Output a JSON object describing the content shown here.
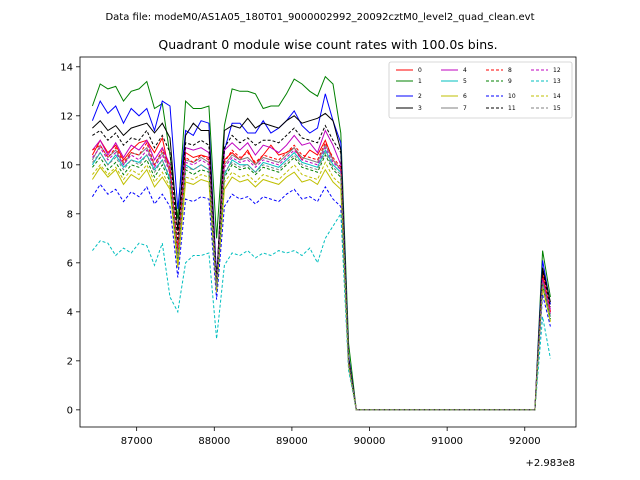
{
  "chart_data": {
    "type": "line",
    "suptitle": "Data file: modeM0/AS1A05_180T01_9000002992_20092cztM0_level2_quad_clean.evt",
    "title": "Quadrant 0 module wise count rates with 100.0s bins.",
    "xlabel": "",
    "ylabel": "",
    "x_offset_label": "+2.983e8",
    "x_offset": 298300000,
    "xlim": [
      86270,
      92660
    ],
    "ylim": [
      -0.7,
      14.4
    ],
    "xticks": [
      87000,
      88000,
      89000,
      90000,
      91000,
      92000
    ],
    "yticks": [
      0,
      2,
      4,
      6,
      8,
      10,
      12,
      14
    ],
    "xtick_labels": [
      "87000",
      "88000",
      "89000",
      "90000",
      "91000",
      "92000"
    ],
    "ytick_labels": [
      "0",
      "2",
      "4",
      "6",
      "8",
      "10",
      "12",
      "14"
    ],
    "legend_position": "upper-right",
    "legend_columns": 4,
    "grid": false,
    "x": [
      86430,
      86530,
      86630,
      86730,
      86830,
      86930,
      87030,
      87130,
      87230,
      87330,
      87430,
      87530,
      87630,
      87730,
      87830,
      87930,
      88030,
      88130,
      88230,
      88330,
      88430,
      88530,
      88630,
      88730,
      88830,
      88930,
      89030,
      89130,
      89230,
      89330,
      89430,
      89530,
      89630,
      89730,
      89830,
      89930,
      90030,
      90130,
      90230,
      90330,
      90430,
      90530,
      90630,
      90730,
      90830,
      90930,
      91030,
      91130,
      91230,
      91330,
      91430,
      91530,
      91630,
      91730,
      91830,
      91930,
      92030,
      92130,
      92230,
      92330
    ],
    "series": [
      {
        "name": "0",
        "color": "#ff0000",
        "dash": "solid",
        "values": [
          10.4,
          11.0,
          10.5,
          10.8,
          10.2,
          10.6,
          10.9,
          11.0,
          10.5,
          11.1,
          9.6,
          6.6,
          10.5,
          10.3,
          10.4,
          10.3,
          5.3,
          10.2,
          10.5,
          10.2,
          10.6,
          10.0,
          10.4,
          10.8,
          10.4,
          10.5,
          10.7,
          10.2,
          10.6,
          10.4,
          11.0,
          10.2,
          9.8,
          2.0,
          0,
          0,
          0,
          0,
          0,
          0,
          0,
          0,
          0,
          0,
          0,
          0,
          0,
          0,
          0,
          0,
          0,
          0,
          0,
          0,
          0,
          0,
          0,
          0,
          5.6,
          4.0
        ]
      },
      {
        "name": "1",
        "color": "#008000",
        "dash": "solid",
        "values": [
          12.4,
          13.3,
          13.1,
          13.2,
          12.6,
          13.0,
          13.1,
          13.4,
          12.3,
          12.5,
          10.4,
          7.8,
          12.6,
          12.3,
          12.3,
          12.4,
          7.0,
          11.6,
          13.1,
          13.0,
          13.0,
          12.9,
          12.3,
          12.4,
          12.4,
          12.9,
          13.5,
          13.3,
          13.0,
          12.8,
          13.6,
          13.3,
          11.3,
          2.7,
          0,
          0,
          0,
          0,
          0,
          0,
          0,
          0,
          0,
          0,
          0,
          0,
          0,
          0,
          0,
          0,
          0,
          0,
          0,
          0,
          0,
          0,
          0,
          0,
          6.5,
          4.6
        ]
      },
      {
        "name": "2",
        "color": "#0000ff",
        "dash": "solid",
        "values": [
          11.8,
          12.6,
          12.1,
          12.4,
          11.7,
          12.3,
          12.0,
          12.3,
          11.4,
          12.6,
          12.4,
          8.2,
          11.4,
          11.2,
          11.8,
          11.7,
          5.4,
          10.6,
          11.7,
          11.7,
          11.3,
          11.3,
          11.8,
          11.3,
          11.5,
          11.8,
          12.2,
          11.6,
          11.3,
          11.5,
          12.9,
          11.8,
          10.9,
          2.2,
          0,
          0,
          0,
          0,
          0,
          0,
          0,
          0,
          0,
          0,
          0,
          0,
          0,
          0,
          0,
          0,
          0,
          0,
          0,
          0,
          0,
          0,
          0,
          0,
          6.1,
          4.3
        ]
      },
      {
        "name": "3",
        "color": "#000000",
        "dash": "solid",
        "values": [
          11.5,
          11.8,
          11.4,
          11.6,
          11.2,
          11.5,
          11.6,
          11.7,
          11.3,
          11.7,
          11.1,
          7.3,
          11.2,
          11.7,
          11.4,
          11.4,
          5.2,
          11.4,
          11.6,
          11.5,
          11.9,
          11.5,
          11.7,
          11.6,
          11.5,
          11.8,
          12.0,
          11.7,
          11.8,
          11.9,
          12.1,
          11.8,
          10.6,
          2.1,
          0,
          0,
          0,
          0,
          0,
          0,
          0,
          0,
          0,
          0,
          0,
          0,
          0,
          0,
          0,
          0,
          0,
          0,
          0,
          0,
          0,
          0,
          0,
          0,
          5.8,
          4.4
        ]
      },
      {
        "name": "4",
        "color": "#bf00bf",
        "dash": "solid",
        "values": [
          10.6,
          11.0,
          10.4,
          10.9,
          10.3,
          10.8,
          10.6,
          11.0,
          10.2,
          10.7,
          10.0,
          6.3,
          10.7,
          10.6,
          10.7,
          10.5,
          5.2,
          10.6,
          10.9,
          10.6,
          10.9,
          10.4,
          10.8,
          10.7,
          10.5,
          10.8,
          11.2,
          10.8,
          10.9,
          10.5,
          11.4,
          10.8,
          10.0,
          2.0,
          0,
          0,
          0,
          0,
          0,
          0,
          0,
          0,
          0,
          0,
          0,
          0,
          0,
          0,
          0,
          0,
          0,
          0,
          0,
          0,
          0,
          0,
          0,
          0,
          5.4,
          4.1
        ]
      },
      {
        "name": "5",
        "color": "#00bfbf",
        "dash": "solid",
        "values": [
          10.0,
          10.5,
          10.0,
          10.4,
          9.9,
          10.2,
          10.1,
          10.4,
          9.8,
          10.2,
          9.4,
          6.2,
          10.0,
          9.8,
          10.0,
          9.8,
          5.0,
          9.6,
          10.2,
          10.0,
          10.0,
          9.7,
          10.1,
          10.0,
          9.9,
          10.2,
          10.5,
          10.1,
          10.0,
          9.9,
          10.6,
          10.0,
          9.7,
          1.9,
          0,
          0,
          0,
          0,
          0,
          0,
          0,
          0,
          0,
          0,
          0,
          0,
          0,
          0,
          0,
          0,
          0,
          0,
          0,
          0,
          0,
          0,
          0,
          0,
          5.2,
          3.8
        ]
      },
      {
        "name": "6",
        "color": "#bfbf00",
        "dash": "solid",
        "values": [
          9.4,
          9.9,
          9.5,
          9.8,
          9.2,
          9.6,
          9.4,
          9.8,
          9.1,
          9.5,
          9.0,
          5.8,
          9.3,
          9.2,
          9.4,
          9.3,
          4.8,
          9.0,
          9.5,
          9.3,
          9.4,
          9.1,
          9.4,
          9.3,
          9.2,
          9.5,
          9.7,
          9.3,
          9.4,
          9.2,
          9.8,
          9.3,
          9.0,
          1.8,
          0,
          0,
          0,
          0,
          0,
          0,
          0,
          0,
          0,
          0,
          0,
          0,
          0,
          0,
          0,
          0,
          0,
          0,
          0,
          0,
          0,
          0,
          0,
          0,
          5.0,
          3.6
        ]
      },
      {
        "name": "7",
        "color": "#808080",
        "dash": "solid",
        "values": [
          10.2,
          10.8,
          10.3,
          10.6,
          10.0,
          10.5,
          10.4,
          10.7,
          10.0,
          10.5,
          9.8,
          6.4,
          10.2,
          10.1,
          10.3,
          10.1,
          5.1,
          10.0,
          10.4,
          10.2,
          10.3,
          10.0,
          10.3,
          10.2,
          10.1,
          10.4,
          10.7,
          10.3,
          10.2,
          10.1,
          10.8,
          10.2,
          9.8,
          1.9,
          0,
          0,
          0,
          0,
          0,
          0,
          0,
          0,
          0,
          0,
          0,
          0,
          0,
          0,
          0,
          0,
          0,
          0,
          0,
          0,
          0,
          0,
          0,
          0,
          5.3,
          3.9
        ]
      },
      {
        "name": "8",
        "color": "#ff0000",
        "dash": "dashed",
        "values": [
          10.6,
          10.8,
          10.3,
          10.7,
          10.1,
          10.5,
          10.4,
          10.9,
          10.0,
          10.6,
          9.9,
          6.5,
          10.3,
          10.1,
          10.4,
          10.2,
          5.2,
          10.1,
          10.6,
          10.3,
          10.5,
          10.1,
          10.4,
          10.3,
          10.2,
          10.5,
          10.8,
          10.4,
          10.3,
          10.2,
          10.9,
          10.3,
          9.9,
          2.0,
          0,
          0,
          0,
          0,
          0,
          0,
          0,
          0,
          0,
          0,
          0,
          0,
          0,
          0,
          0,
          0,
          0,
          0,
          0,
          0,
          0,
          0,
          0,
          0,
          5.5,
          4.0
        ]
      },
      {
        "name": "9",
        "color": "#008000",
        "dash": "dashed",
        "values": [
          9.9,
          10.3,
          9.8,
          10.1,
          9.6,
          10.0,
          9.9,
          10.2,
          9.5,
          10.0,
          9.3,
          6.1,
          9.8,
          9.6,
          9.8,
          9.7,
          4.9,
          9.5,
          10.0,
          9.8,
          9.9,
          9.6,
          9.9,
          9.8,
          9.7,
          10.0,
          10.3,
          9.9,
          9.8,
          9.7,
          10.4,
          9.8,
          9.5,
          1.9,
          0,
          0,
          0,
          0,
          0,
          0,
          0,
          0,
          0,
          0,
          0,
          0,
          0,
          0,
          0,
          0,
          0,
          0,
          0,
          0,
          0,
          0,
          0,
          0,
          5.1,
          3.7
        ]
      },
      {
        "name": "10",
        "color": "#0000ff",
        "dash": "dashed",
        "values": [
          8.7,
          9.2,
          8.8,
          9.0,
          8.5,
          8.9,
          8.7,
          9.1,
          8.4,
          8.8,
          8.3,
          5.4,
          8.6,
          8.5,
          8.7,
          8.6,
          4.5,
          8.3,
          8.8,
          8.6,
          8.7,
          8.4,
          8.7,
          8.6,
          8.5,
          8.8,
          9.0,
          8.6,
          8.7,
          8.5,
          9.1,
          8.6,
          8.3,
          1.7,
          0,
          0,
          0,
          0,
          0,
          0,
          0,
          0,
          0,
          0,
          0,
          0,
          0,
          0,
          0,
          0,
          0,
          0,
          0,
          0,
          0,
          0,
          0,
          0,
          4.7,
          3.4
        ]
      },
      {
        "name": "11",
        "color": "#000000",
        "dash": "dashed",
        "values": [
          11.2,
          11.4,
          11.0,
          11.3,
          10.8,
          11.1,
          11.0,
          11.4,
          10.7,
          11.2,
          10.5,
          6.9,
          10.9,
          10.8,
          11.0,
          10.8,
          5.3,
          10.7,
          11.2,
          10.9,
          11.1,
          10.8,
          11.0,
          11.0,
          10.9,
          11.2,
          11.5,
          11.1,
          11.0,
          10.9,
          11.6,
          11.0,
          10.5,
          2.1,
          0,
          0,
          0,
          0,
          0,
          0,
          0,
          0,
          0,
          0,
          0,
          0,
          0,
          0,
          0,
          0,
          0,
          0,
          0,
          0,
          0,
          0,
          0,
          0,
          5.7,
          4.2
        ]
      },
      {
        "name": "12",
        "color": "#bf00bf",
        "dash": "dashed",
        "values": [
          10.3,
          10.7,
          10.2,
          10.5,
          10.0,
          10.4,
          10.2,
          10.6,
          9.9,
          10.4,
          9.7,
          6.3,
          10.1,
          10.0,
          10.2,
          10.0,
          5.1,
          9.9,
          10.3,
          10.1,
          10.2,
          9.9,
          10.2,
          10.1,
          10.0,
          10.3,
          10.6,
          10.2,
          10.1,
          10.0,
          10.7,
          10.1,
          9.8,
          1.9,
          0,
          0,
          0,
          0,
          0,
          0,
          0,
          0,
          0,
          0,
          0,
          0,
          0,
          0,
          0,
          0,
          0,
          0,
          0,
          0,
          0,
          0,
          0,
          0,
          5.3,
          3.9
        ]
      },
      {
        "name": "13",
        "color": "#00bfbf",
        "dash": "dashed",
        "values": [
          6.5,
          6.9,
          6.8,
          6.3,
          6.6,
          6.4,
          6.8,
          6.7,
          5.9,
          6.8,
          4.6,
          4.0,
          6.0,
          6.3,
          6.3,
          6.4,
          2.9,
          5.9,
          6.4,
          6.3,
          6.5,
          6.2,
          6.4,
          6.3,
          6.5,
          6.4,
          6.5,
          6.3,
          6.6,
          6.0,
          7.0,
          7.5,
          8.0,
          1.6,
          0,
          0,
          0,
          0,
          0,
          0,
          0,
          0,
          0,
          0,
          0,
          0,
          0,
          0,
          0,
          0,
          0,
          0,
          0,
          0,
          0,
          0,
          0,
          0,
          3.8,
          2.1
        ]
      },
      {
        "name": "14",
        "color": "#bfbf00",
        "dash": "dashed",
        "values": [
          9.6,
          10.0,
          9.6,
          9.9,
          9.4,
          9.8,
          9.6,
          10.0,
          9.3,
          9.7,
          9.1,
          6.0,
          9.5,
          9.4,
          9.6,
          9.5,
          4.8,
          9.3,
          9.7,
          9.5,
          9.6,
          9.3,
          9.6,
          9.5,
          9.4,
          9.7,
          10.0,
          9.6,
          9.5,
          9.4,
          10.1,
          9.5,
          9.2,
          1.8,
          0,
          0,
          0,
          0,
          0,
          0,
          0,
          0,
          0,
          0,
          0,
          0,
          0,
          0,
          0,
          0,
          0,
          0,
          0,
          0,
          0,
          0,
          0,
          0,
          5.0,
          3.6
        ]
      },
      {
        "name": "15",
        "color": "#808080",
        "dash": "dashed",
        "values": [
          10.1,
          10.5,
          10.0,
          10.3,
          9.8,
          10.2,
          10.0,
          10.4,
          9.7,
          10.2,
          9.5,
          6.2,
          9.9,
          9.8,
          10.0,
          9.8,
          5.0,
          9.7,
          10.1,
          9.9,
          10.0,
          9.7,
          10.0,
          9.9,
          9.8,
          10.1,
          10.4,
          10.0,
          9.9,
          9.8,
          10.5,
          9.9,
          9.6,
          1.9,
          0,
          0,
          0,
          0,
          0,
          0,
          0,
          0,
          0,
          0,
          0,
          0,
          0,
          0,
          0,
          0,
          0,
          0,
          0,
          0,
          0,
          0,
          0,
          0,
          5.2,
          3.8
        ]
      }
    ]
  }
}
